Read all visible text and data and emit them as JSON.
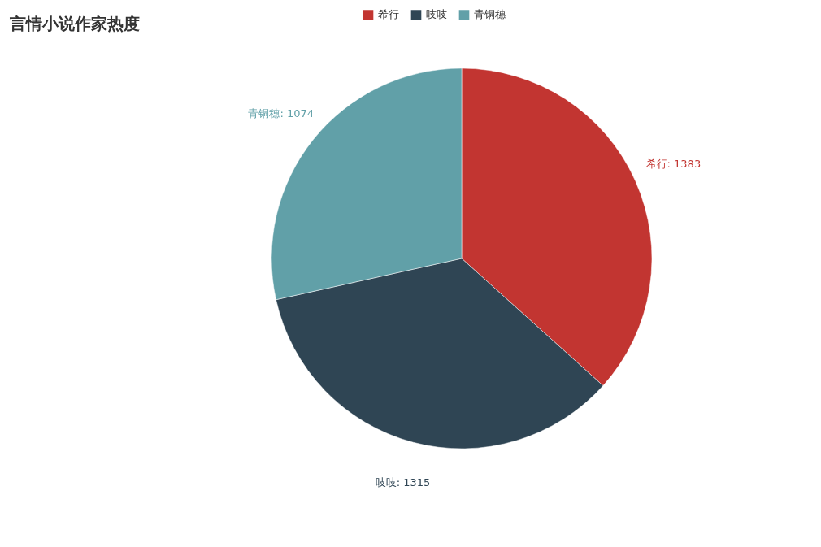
{
  "chart_data": {
    "type": "pie",
    "title": "言情小说作家热度",
    "categories": [
      "希行",
      "吱吱",
      "青铜穗"
    ],
    "values": [
      1383,
      1315,
      1074
    ],
    "colors": [
      "#c23531",
      "#2f4554",
      "#61a0a8"
    ],
    "value_labels": [
      "希行: 1383",
      "吱吱: 1315",
      "青铜穗: 1074"
    ],
    "legend": "top"
  }
}
